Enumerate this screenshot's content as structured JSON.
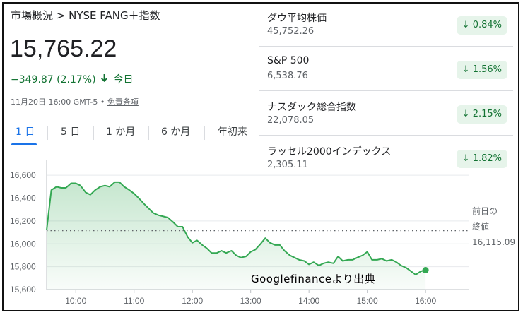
{
  "header": {
    "breadcrumb": "市場概況 > NYSE FANG＋指数",
    "price": "15,765.22",
    "change_text": "−349.87 (2.17%)",
    "change_suffix": "今日",
    "change_color": "#137333",
    "meta_text": "11月20日 16:00 GMT-5 •",
    "disclaimer": "免責条項"
  },
  "tabs": [
    {
      "label": "1 日",
      "active": true
    },
    {
      "label": "5 日"
    },
    {
      "label": "1 か月"
    },
    {
      "label": "6 か月"
    },
    {
      "label": "年初来"
    }
  ],
  "indices": [
    {
      "name": "ダウ平均株価",
      "value": "45,752.26",
      "change": "0.84%",
      "direction": "down"
    },
    {
      "name": "S&P 500",
      "value": "6,538.76",
      "change": "1.56%",
      "direction": "down"
    },
    {
      "name": "ナスダック総合指数",
      "value": "22,078.05",
      "change": "2.15%",
      "direction": "down"
    },
    {
      "name": "ラッセル2000インデックス",
      "value": "2,305.11",
      "change": "1.82%",
      "direction": "down"
    }
  ],
  "prev_close": {
    "label_line1": "前日の",
    "label_line2": "終値",
    "value": "16,115.09"
  },
  "watermark": "Googlefinanceより出典",
  "chart_data": {
    "type": "area",
    "color": "#34a853",
    "ylim": [
      15600,
      16700
    ],
    "y_ticks": [
      "16,600",
      "16,400",
      "16,200",
      "16,000",
      "15,800",
      "15,600"
    ],
    "y_tick_values": [
      16600,
      16400,
      16200,
      16000,
      15800,
      15600
    ],
    "x_ticks": [
      "10:00",
      "11:00",
      "12:00",
      "13:00",
      "14:00",
      "15:00",
      "16:00"
    ],
    "x_tick_values": [
      10,
      11,
      12,
      13,
      14,
      15,
      16
    ],
    "xlim": [
      9.5,
      16.75
    ],
    "baseline": 16115.09,
    "points": [
      [
        9.5,
        16120
      ],
      [
        9.58,
        16470
      ],
      [
        9.67,
        16500
      ],
      [
        9.75,
        16490
      ],
      [
        9.83,
        16490
      ],
      [
        9.92,
        16530
      ],
      [
        10.0,
        16530
      ],
      [
        10.08,
        16510
      ],
      [
        10.17,
        16450
      ],
      [
        10.25,
        16430
      ],
      [
        10.33,
        16470
      ],
      [
        10.42,
        16500
      ],
      [
        10.5,
        16510
      ],
      [
        10.58,
        16500
      ],
      [
        10.67,
        16540
      ],
      [
        10.75,
        16540
      ],
      [
        10.83,
        16500
      ],
      [
        10.92,
        16470
      ],
      [
        11.0,
        16440
      ],
      [
        11.08,
        16400
      ],
      [
        11.17,
        16350
      ],
      [
        11.25,
        16310
      ],
      [
        11.33,
        16270
      ],
      [
        11.42,
        16250
      ],
      [
        11.5,
        16240
      ],
      [
        11.58,
        16230
      ],
      [
        11.67,
        16190
      ],
      [
        11.75,
        16150
      ],
      [
        11.83,
        16150
      ],
      [
        11.92,
        16060
      ],
      [
        12.0,
        16010
      ],
      [
        12.08,
        16030
      ],
      [
        12.17,
        15990
      ],
      [
        12.25,
        15960
      ],
      [
        12.33,
        15920
      ],
      [
        12.42,
        15920
      ],
      [
        12.5,
        15940
      ],
      [
        12.58,
        15920
      ],
      [
        12.67,
        15940
      ],
      [
        12.75,
        15900
      ],
      [
        12.83,
        15880
      ],
      [
        12.92,
        15890
      ],
      [
        13.0,
        15930
      ],
      [
        13.08,
        15950
      ],
      [
        13.17,
        16000
      ],
      [
        13.25,
        16050
      ],
      [
        13.33,
        16010
      ],
      [
        13.42,
        15990
      ],
      [
        13.5,
        15990
      ],
      [
        13.58,
        15940
      ],
      [
        13.67,
        15900
      ],
      [
        13.75,
        15880
      ],
      [
        13.83,
        15860
      ],
      [
        13.92,
        15850
      ],
      [
        14.0,
        15820
      ],
      [
        14.08,
        15840
      ],
      [
        14.17,
        15810
      ],
      [
        14.25,
        15830
      ],
      [
        14.33,
        15840
      ],
      [
        14.42,
        15830
      ],
      [
        14.5,
        15890
      ],
      [
        14.58,
        15850
      ],
      [
        14.67,
        15860
      ],
      [
        14.75,
        15860
      ],
      [
        14.83,
        15880
      ],
      [
        14.92,
        15900
      ],
      [
        15.0,
        15930
      ],
      [
        15.08,
        15860
      ],
      [
        15.17,
        15860
      ],
      [
        15.25,
        15870
      ],
      [
        15.33,
        15850
      ],
      [
        15.42,
        15860
      ],
      [
        15.5,
        15840
      ],
      [
        15.58,
        15810
      ],
      [
        15.67,
        15790
      ],
      [
        15.75,
        15760
      ],
      [
        15.83,
        15730
      ],
      [
        15.92,
        15760
      ],
      [
        16.0,
        15770
      ]
    ],
    "end_marker": [
      16.0,
      15770
    ]
  }
}
